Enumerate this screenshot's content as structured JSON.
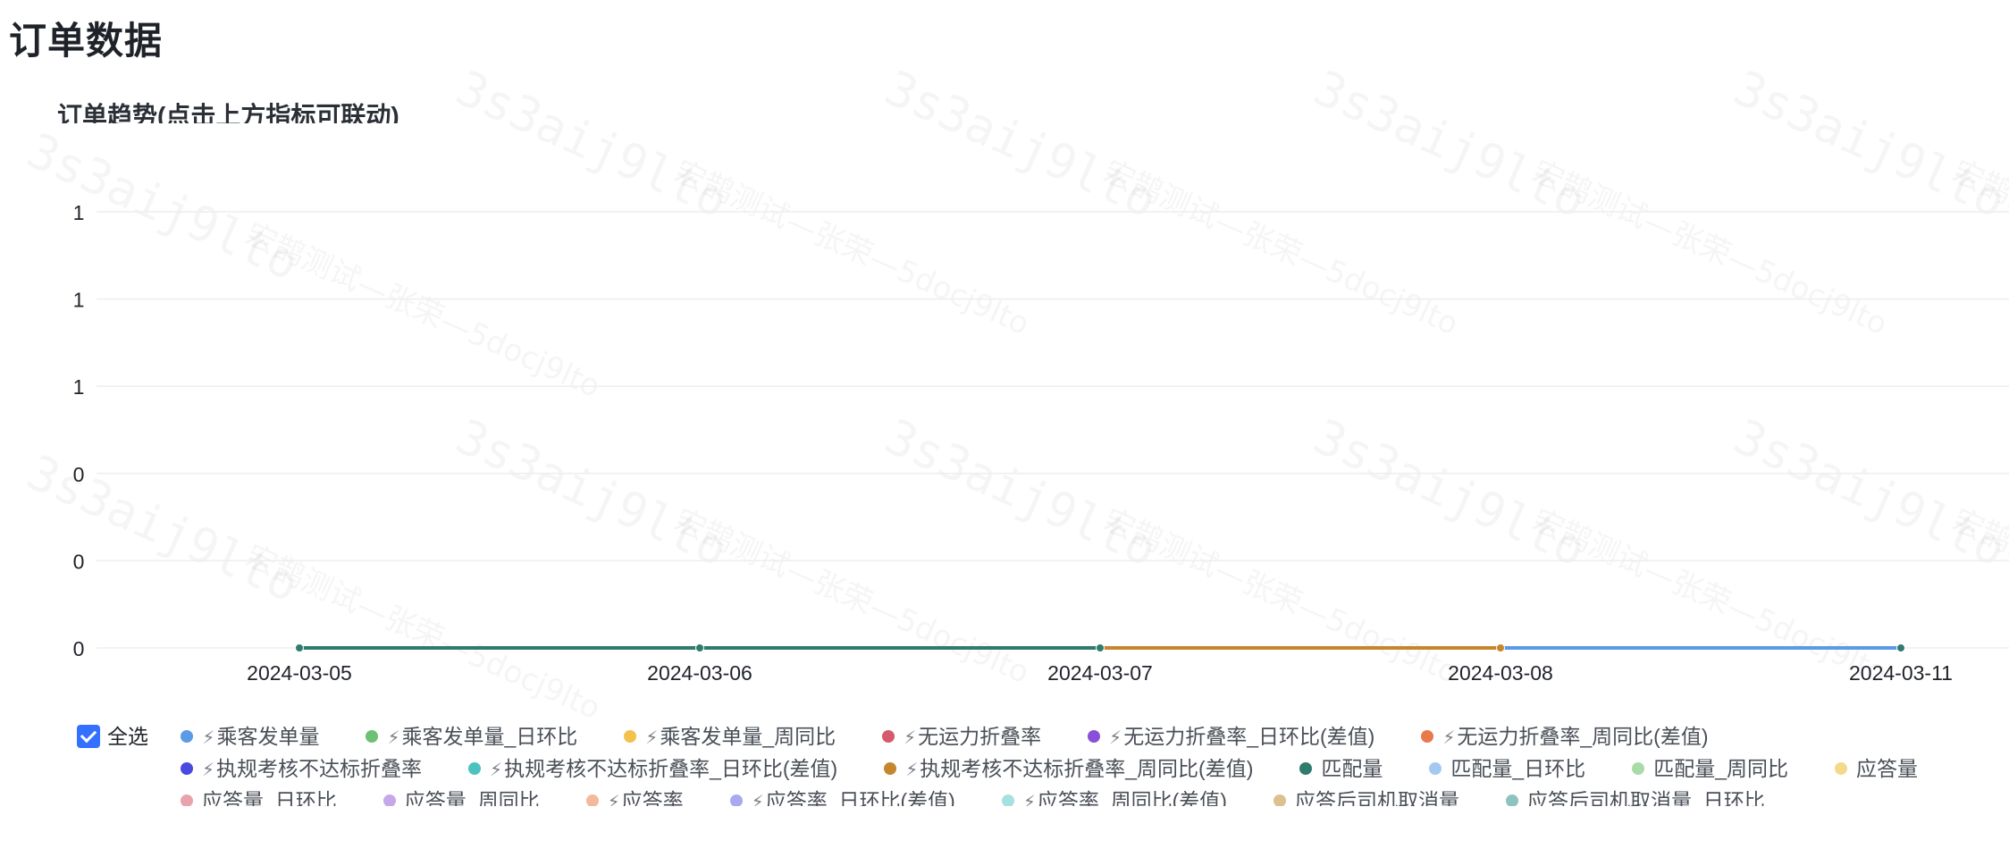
{
  "page": {
    "title": "订单数据",
    "chart_title": "订单趋势(点击上方指标可联动)"
  },
  "chart_data": {
    "type": "line",
    "title": "订单趋势(点击上方指标可联动)",
    "xlabel": "",
    "ylabel": "",
    "x": [
      "2024-03-05",
      "2024-03-06",
      "2024-03-07",
      "2024-03-08",
      "2024-03-11"
    ],
    "y_tick_labels": [
      "0",
      "0",
      "0",
      "1",
      "1",
      "1"
    ],
    "ylim": [
      0,
      1
    ],
    "grid": true,
    "legend_position": "bottom",
    "visible_segments": [
      {
        "from": "2024-03-05",
        "to": "2024-03-07",
        "color": "#2f7c6d"
      },
      {
        "from": "2024-03-07",
        "to": "2024-03-08",
        "color": "#c6862d"
      },
      {
        "from": "2024-03-08",
        "to": "2024-03-11",
        "color": "#5b9ae6"
      }
    ],
    "series": [
      {
        "name": "乘客发单量",
        "color": "#5b9ae6",
        "values": [
          0,
          0,
          0,
          0,
          0
        ]
      },
      {
        "name": "乘客发单量_日环比",
        "color": "#6cc174",
        "values": [
          0,
          0,
          0,
          0,
          0
        ]
      },
      {
        "name": "乘客发单量_周同比",
        "color": "#f2c14e",
        "values": [
          0,
          0,
          0,
          0,
          0
        ]
      },
      {
        "name": "无运力折叠率",
        "color": "#d65a6b",
        "values": [
          0,
          0,
          0,
          0,
          0
        ]
      },
      {
        "name": "无运力折叠率_日环比(差值)",
        "color": "#8a4fd8",
        "values": [
          0,
          0,
          0,
          0,
          0
        ]
      },
      {
        "name": "无运力折叠率_周同比(差值)",
        "color": "#e9784b",
        "values": [
          0,
          0,
          0,
          0,
          0
        ]
      },
      {
        "name": "执规考核不达标折叠率",
        "color": "#4a4ae0",
        "values": [
          0,
          0,
          0,
          0,
          0
        ]
      },
      {
        "name": "执规考核不达标折叠率_日环比(差值)",
        "color": "#4cc2c0",
        "values": [
          0,
          0,
          0,
          0,
          0
        ]
      },
      {
        "name": "执规考核不达标折叠率_周同比(差值)",
        "color": "#c6862d",
        "values": [
          0,
          0,
          0,
          0,
          0
        ]
      },
      {
        "name": "匹配量",
        "color": "#2f7c6d",
        "values": [
          0,
          0,
          0,
          0,
          0
        ]
      },
      {
        "name": "匹配量_日环比",
        "color": "#a3c9f2",
        "values": [
          0,
          0,
          0,
          0,
          0
        ]
      },
      {
        "name": "匹配量_周同比",
        "color": "#a8dba8",
        "values": [
          0,
          0,
          0,
          0,
          0
        ]
      },
      {
        "name": "应答量",
        "color": "#f4d98a",
        "values": [
          0,
          0,
          0,
          0,
          0
        ]
      },
      {
        "name": "应答量_日环比",
        "color": "#e8a3ad",
        "values": [
          0,
          0,
          0,
          0,
          0
        ]
      },
      {
        "name": "应答量_周同比",
        "color": "#c5a8ea",
        "values": [
          0,
          0,
          0,
          0,
          0
        ]
      },
      {
        "name": "应答率",
        "color": "#f2b99a",
        "values": [
          0,
          0,
          0,
          0,
          0
        ]
      },
      {
        "name": "应答率_日环比(差值)",
        "color": "#a9a9f0",
        "values": [
          0,
          0,
          0,
          0,
          0
        ]
      },
      {
        "name": "应答率_周同比(差值)",
        "color": "#a6e0df",
        "values": [
          0,
          0,
          0,
          0,
          0
        ]
      },
      {
        "name": "应答后司机取消量",
        "color": "#dcc08f",
        "values": [
          0,
          0,
          0,
          0,
          0
        ]
      },
      {
        "name": "应答后司机取消量_日环比",
        "color": "#8fc4be",
        "values": [
          0,
          0,
          0,
          0,
          0
        ]
      }
    ]
  },
  "legend": {
    "select_all_label": "全选",
    "icon_name": "formula-icon",
    "icon_glyph": "⚡",
    "rows": [
      [
        {
          "label": "乘客发单量",
          "color": "#5b9ae6",
          "icon": true
        },
        {
          "label": "乘客发单量_日环比",
          "color": "#6cc174",
          "icon": true
        },
        {
          "label": "乘客发单量_周同比",
          "color": "#f2c14e",
          "icon": true
        },
        {
          "label": "无运力折叠率",
          "color": "#d65a6b",
          "icon": true
        },
        {
          "label": "无运力折叠率_日环比(差值)",
          "color": "#8a4fd8",
          "icon": true
        },
        {
          "label": "无运力折叠率_周同比(差值)",
          "color": "#e9784b",
          "icon": true
        }
      ],
      [
        {
          "label": "执规考核不达标折叠率",
          "color": "#4a4ae0",
          "icon": true
        },
        {
          "label": "执规考核不达标折叠率_日环比(差值)",
          "color": "#4cc2c0",
          "icon": true
        },
        {
          "label": "执规考核不达标折叠率_周同比(差值)",
          "color": "#c6862d",
          "icon": true
        },
        {
          "label": "匹配量",
          "color": "#2f7c6d",
          "icon": false
        },
        {
          "label": "匹配量_日环比",
          "color": "#a3c9f2",
          "icon": false
        },
        {
          "label": "匹配量_周同比",
          "color": "#a8dba8",
          "icon": false
        },
        {
          "label": "应答量",
          "color": "#f4d98a",
          "icon": false
        }
      ],
      [
        {
          "label": "应答量_日环比",
          "color": "#e8a3ad",
          "icon": false
        },
        {
          "label": "应答量_周同比",
          "color": "#c5a8ea",
          "icon": false
        },
        {
          "label": "应答率",
          "color": "#f2b99a",
          "icon": true
        },
        {
          "label": "应答率_日环比(差值)",
          "color": "#a9a9f0",
          "icon": true
        },
        {
          "label": "应答率_周同比(差值)",
          "color": "#a6e0df",
          "icon": true
        },
        {
          "label": "应答后司机取消量",
          "color": "#dcc08f",
          "icon": false
        },
        {
          "label": "应答后司机取消量_日环比",
          "color": "#8fc4be",
          "icon": false
        }
      ]
    ]
  },
  "watermarks": {
    "code": "3s3aij9lto",
    "user": "宏鹊测试—张荣—5docj9lto"
  }
}
